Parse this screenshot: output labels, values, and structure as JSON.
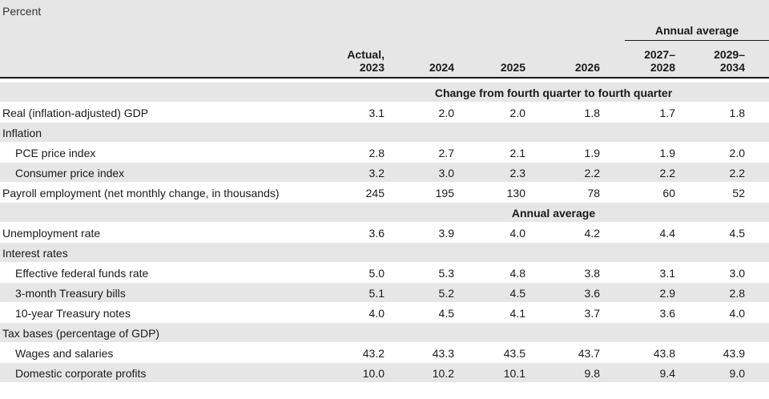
{
  "unit_label": "Percent",
  "spanner": "Annual average",
  "columns": [
    {
      "line1": "Actual,",
      "line2": "2023"
    },
    {
      "line1": "",
      "line2": "2024"
    },
    {
      "line1": "",
      "line2": "2025"
    },
    {
      "line1": "",
      "line2": "2026"
    },
    {
      "line1": "2027–",
      "line2": "2028"
    },
    {
      "line1": "2029–",
      "line2": "2034"
    }
  ],
  "sections": [
    {
      "title": "Change from fourth quarter to fourth quarter",
      "rows": [
        {
          "label": "Real (inflation-adjusted) GDP",
          "indent": false,
          "values": [
            "3.1",
            "2.0",
            "2.0",
            "1.8",
            "1.7",
            "1.8"
          ]
        },
        {
          "label": "Inflation",
          "indent": false,
          "values": []
        },
        {
          "label": "PCE price index",
          "indent": true,
          "values": [
            "2.8",
            "2.7",
            "2.1",
            "1.9",
            "1.9",
            "2.0"
          ]
        },
        {
          "label": "Consumer price index",
          "indent": true,
          "values": [
            "3.2",
            "3.0",
            "2.3",
            "2.2",
            "2.2",
            "2.2"
          ]
        },
        {
          "label": "Payroll employment (net monthly change, in thousands)",
          "indent": false,
          "values": [
            "245",
            "195",
            "130",
            "78",
            "60",
            "52"
          ]
        }
      ]
    },
    {
      "title": "Annual average",
      "rows": [
        {
          "label": "Unemployment rate",
          "indent": false,
          "values": [
            "3.6",
            "3.9",
            "4.0",
            "4.2",
            "4.4",
            "4.5"
          ]
        },
        {
          "label": "Interest rates",
          "indent": false,
          "values": []
        },
        {
          "label": "Effective federal funds rate",
          "indent": true,
          "values": [
            "5.0",
            "5.3",
            "4.8",
            "3.8",
            "3.1",
            "3.0"
          ]
        },
        {
          "label": "3-month Treasury bills",
          "indent": true,
          "values": [
            "5.1",
            "5.2",
            "4.5",
            "3.6",
            "2.9",
            "2.8"
          ]
        },
        {
          "label": "10-year Treasury notes",
          "indent": true,
          "values": [
            "4.0",
            "4.5",
            "4.1",
            "3.7",
            "3.6",
            "4.0"
          ]
        },
        {
          "label": "Tax bases (percentage of GDP)",
          "indent": false,
          "values": []
        },
        {
          "label": "Wages and salaries",
          "indent": true,
          "values": [
            "43.2",
            "43.3",
            "43.5",
            "43.7",
            "43.8",
            "43.9"
          ]
        },
        {
          "label": "Domestic corporate profits",
          "indent": true,
          "values": [
            "10.0",
            "10.2",
            "10.1",
            "9.8",
            "9.4",
            "9.0"
          ]
        }
      ]
    }
  ]
}
